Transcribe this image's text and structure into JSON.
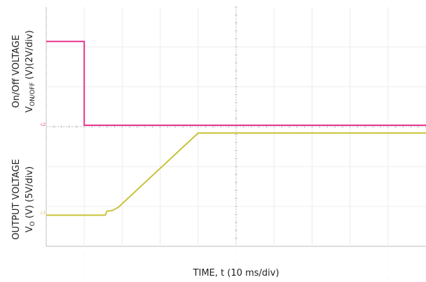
{
  "chart_data": {
    "type": "line",
    "xlabel": "TIME, t (10 ms/div)",
    "x_div_ms": 10,
    "x_divisions": 10,
    "x_range_ms": [
      0,
      100
    ],
    "grid": true,
    "panels": [
      {
        "id": "onoff",
        "ylabel_line1": "On/Off VOLTAGE",
        "ylabel_line2_main": "V",
        "ylabel_line2_sub": "ON/OFF",
        "ylabel_line2_rest": " (V)(2V/div)",
        "scale_v_per_div": 2,
        "channel_marker": "c2",
        "color": "#e8358e",
        "series": [
          {
            "values": [
              [
                0,
                4.2
              ],
              [
                10,
                4.2
              ],
              [
                10,
                0
              ],
              [
                100,
                0
              ]
            ]
          }
        ]
      },
      {
        "id": "output",
        "ylabel_line1": "OUTPUT VOLTAGE",
        "ylabel_line2_main": "V",
        "ylabel_line2_sub": "O",
        "ylabel_line2_rest": " (V) (5V/div)",
        "scale_v_per_div": 5,
        "channel_marker": "c1",
        "color": "#c8c23a",
        "series": [
          {
            "values": [
              [
                0,
                0
              ],
              [
                15.5,
                0
              ],
              [
                16,
                0.5
              ],
              [
                17.5,
                0.6
              ],
              [
                19,
                1.0
              ],
              [
                40,
                10.3
              ],
              [
                100,
                10.3
              ]
            ]
          }
        ]
      }
    ]
  }
}
